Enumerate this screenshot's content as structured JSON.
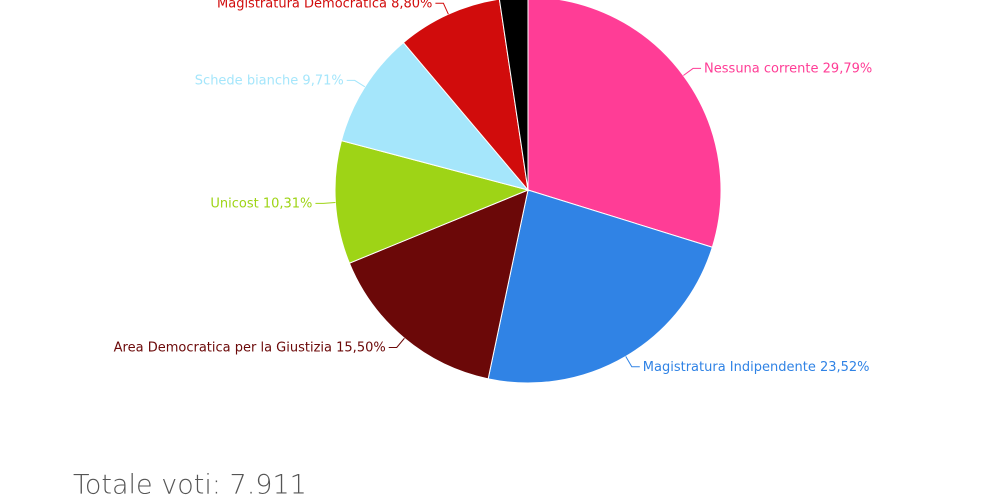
{
  "chart_data": {
    "type": "pie",
    "categories": [
      "Nessuna corrente",
      "Magistratura Indipendente",
      "Area Democratica per la Giustizia",
      "Unicost",
      "Schede bianche",
      "Magistratura Democratica",
      null
    ],
    "values": [
      29.79,
      23.52,
      15.5,
      10.31,
      9.71,
      8.8,
      2.37
    ],
    "value_labels": [
      "29,79%",
      "23,52%",
      "15,50%",
      "10,31%",
      "9,71%",
      "8,80%",
      null
    ],
    "colors": [
      "#ff3d96",
      "#3083e5",
      "#6b0808",
      "#9ed416",
      "#a5e6fb",
      "#d10c0c",
      "#000000"
    ],
    "footnote": "Totale voti: 7.911"
  }
}
